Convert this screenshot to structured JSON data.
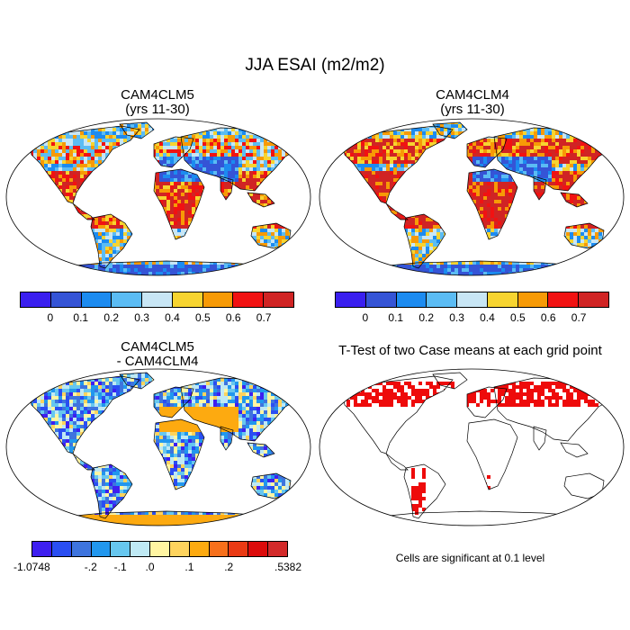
{
  "figure": {
    "title": "JJA ESAI (m2/m2)",
    "panels": [
      {
        "id": "p1",
        "title1": "CAM4CLM5",
        "title2": "(yrs 11-30)"
      },
      {
        "id": "p2",
        "title1": "CAM4CLM4",
        "title2": "(yrs 11-30)"
      },
      {
        "id": "p3",
        "title1": "CAM4CLM5",
        "title2": "- CAM4CLM4"
      },
      {
        "id": "p4",
        "title1": "T-Test of two Case means at each grid point",
        "title2": ""
      }
    ],
    "note": "Cells are significant at 0.1 level"
  },
  "colorbars": {
    "top": {
      "colors": [
        "#3a1fef",
        "#3554d6",
        "#1c8bf0",
        "#5bbcf4",
        "#c8e6f5",
        "#f7d430",
        "#f79a06",
        "#f11212",
        "#d02424"
      ],
      "ticks": [
        "0",
        "0.1",
        "0.2",
        "0.3",
        "0.4",
        "0.5",
        "0.6",
        "0.7"
      ]
    },
    "diff": {
      "colors": [
        "#3e1ff0",
        "#2a4ef2",
        "#3e74de",
        "#2197ee",
        "#67c7ef",
        "#bfe9f4",
        "#fff5a2",
        "#fed35d",
        "#fdaa10",
        "#f7701b",
        "#ea3a14",
        "#dc0b0b",
        "#d32a2a"
      ],
      "ticks": [
        "-1.0748",
        "-.2",
        "-.1",
        ".0",
        ".1",
        ".2",
        ".5382"
      ]
    }
  },
  "map_colors": {
    "ocean": "#ffffff",
    "land_low": "#3f5fe0",
    "land_high": "#de2b2b",
    "diff_pos": "#fff3a8",
    "diff_neg": "#2f57d9",
    "signif": "#ee0b0b"
  }
}
